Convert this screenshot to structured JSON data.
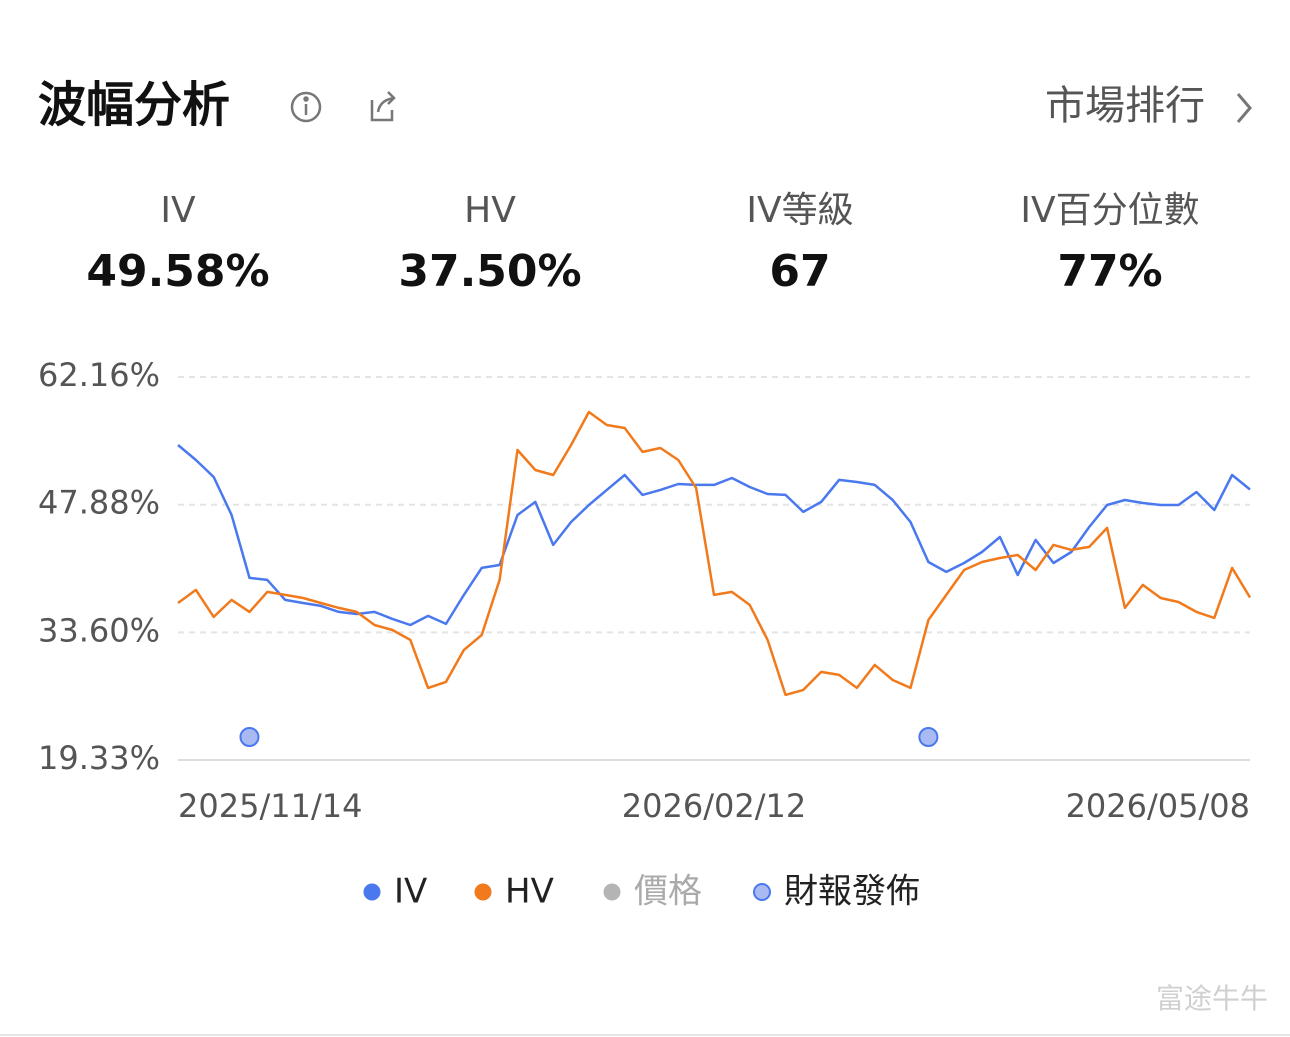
{
  "header": {
    "title": "波幅分析",
    "link": "市場排行"
  },
  "stats": [
    {
      "label": "IV",
      "value": "49.58%"
    },
    {
      "label": "HV",
      "value": "37.50%"
    },
    {
      "label": "IV等級",
      "value": "67"
    },
    {
      "label": "IV百分位數",
      "value": "77%"
    }
  ],
  "chart_data": {
    "type": "line",
    "categories": [
      "2025/11/14",
      null,
      null,
      null,
      null,
      null,
      null,
      null,
      null,
      null,
      null,
      null,
      null,
      null,
      null,
      null,
      null,
      null,
      null,
      null,
      null,
      null,
      null,
      null,
      null,
      null,
      null,
      null,
      null,
      null,
      "2026/02/12",
      null,
      null,
      null,
      null,
      null,
      null,
      null,
      null,
      null,
      null,
      null,
      null,
      null,
      null,
      null,
      null,
      null,
      null,
      null,
      null,
      null,
      null,
      null,
      null,
      null,
      null,
      null,
      null,
      null,
      "2026/05/08"
    ],
    "series": [
      {
        "name": "IV",
        "color": "#4a78ee",
        "values": [
          54.56,
          52.88,
          50.98,
          46.73,
          39.69,
          39.47,
          37.23,
          36.89,
          36.56,
          35.89,
          35.66,
          35.89,
          35.11,
          34.43,
          35.44,
          34.55,
          37.79,
          40.81,
          41.14,
          46.73,
          48.19,
          43.38,
          45.95,
          47.85,
          49.53,
          51.2,
          48.97,
          49.53,
          50.2,
          50.09,
          50.09,
          50.87,
          49.86,
          49.08,
          48.97,
          47.07,
          48.19,
          50.65,
          50.42,
          50.09,
          48.41,
          45.95,
          41.47,
          40.36,
          41.36,
          42.59,
          44.27,
          40.02,
          43.94,
          41.36,
          42.59,
          45.39,
          47.85,
          48.41,
          48.07,
          47.85,
          47.85,
          49.3,
          47.29,
          51.2,
          49.58
        ]
      },
      {
        "name": "HV",
        "color": "#f07a1c",
        "values": [
          36.89,
          38.35,
          35.33,
          37.23,
          35.89,
          38.13,
          37.79,
          37.45,
          36.89,
          36.34,
          35.89,
          34.43,
          33.87,
          32.76,
          27.39,
          28.06,
          31.64,
          33.31,
          39.47,
          54.0,
          51.76,
          51.2,
          54.56,
          58.25,
          56.79,
          56.46,
          53.78,
          54.22,
          52.88,
          49.75,
          37.79,
          38.13,
          36.67,
          32.76,
          26.61,
          27.17,
          29.18,
          28.85,
          27.39,
          29.96,
          28.28,
          27.39,
          34.99,
          37.79,
          40.58,
          41.47,
          41.92,
          42.25,
          40.58,
          43.38,
          42.82,
          43.16,
          45.28,
          36.34,
          38.91,
          37.45,
          37.0,
          35.89,
          35.22,
          40.81,
          37.5
        ]
      }
    ],
    "extra_legend": [
      {
        "name": "價格",
        "color": "#b4b4b4"
      },
      {
        "name": "財報發佈",
        "color": "#a9b9f2"
      }
    ],
    "earnings": [
      4,
      42
    ],
    "ylim": [
      19.33,
      62.16
    ],
    "yticks": [
      {
        "value": 19.33,
        "label": "19.33%"
      },
      {
        "value": 33.6,
        "label": "33.60%"
      },
      {
        "value": 47.88,
        "label": "47.88%"
      },
      {
        "value": 62.16,
        "label": "62.16%"
      }
    ],
    "grid": true
  },
  "watermark": "富途牛牛"
}
